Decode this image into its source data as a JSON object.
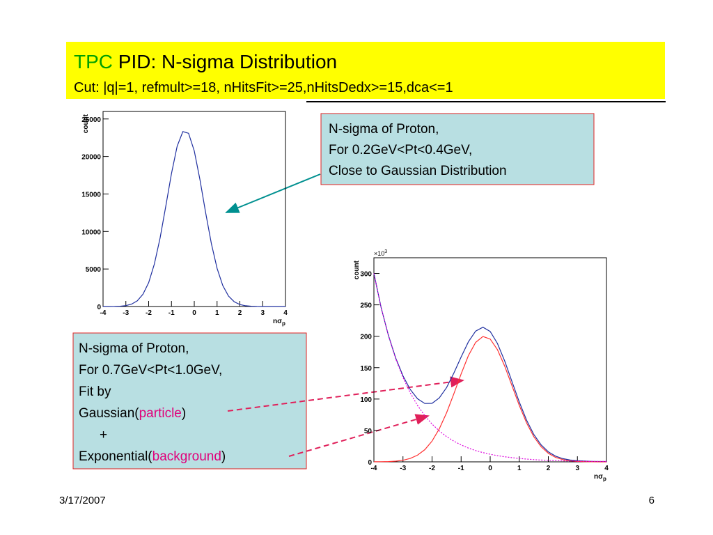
{
  "header": {
    "title_accent": "TPC",
    "title": "PID: N-sigma Distribution",
    "subtitle": "Cut: |q|=1, refmult>=18, nHitsFit>=25,nHitsDedx>=15,dca<=1"
  },
  "chart_data": [
    {
      "type": "line",
      "ylabel": "count",
      "xlabel": "nσ",
      "xlabel_sub": "p",
      "x": [
        -4,
        -3.75,
        -3.5,
        -3.25,
        -3,
        -2.75,
        -2.5,
        -2.25,
        -2,
        -1.75,
        -1.5,
        -1.25,
        -1,
        -0.75,
        -0.5,
        -0.25,
        0,
        0.25,
        0.5,
        0.75,
        1,
        1.25,
        1.5,
        1.75,
        2,
        2.25,
        2.5,
        2.75,
        3,
        3.25,
        3.5,
        3.75,
        4
      ],
      "xlim": [
        -4,
        4
      ],
      "xticks": [
        -4,
        -3,
        -2,
        -1,
        0,
        1,
        2,
        3,
        4
      ],
      "ylim": [
        0,
        26000
      ],
      "yticks": [
        0,
        5000,
        10000,
        15000,
        20000,
        25000
      ],
      "series": [
        {
          "color": "#1f2f9f",
          "values": [
            1,
            4,
            13,
            41,
            120,
            315,
            750,
            1630,
            3180,
            5660,
            9130,
            13370,
            17740,
            21360,
            23320,
            23090,
            20740,
            16890,
            12480,
            8370,
            5080,
            2800,
            1400,
            640,
            260,
            100,
            33,
            10,
            3,
            1,
            0,
            0,
            0
          ]
        }
      ]
    },
    {
      "type": "line",
      "ylabel": "count",
      "xlabel": "nσ",
      "xlabel_sub": "p",
      "multiplier": "×10",
      "multiplier_exp": "3",
      "x": [
        -4,
        -3.75,
        -3.5,
        -3.25,
        -3,
        -2.75,
        -2.5,
        -2.25,
        -2,
        -1.75,
        -1.5,
        -1.25,
        -1,
        -0.75,
        -0.5,
        -0.25,
        0,
        0.25,
        0.5,
        0.75,
        1,
        1.25,
        1.5,
        1.75,
        2,
        2.25,
        2.5,
        2.75,
        3,
        3.25,
        3.5,
        3.75,
        4
      ],
      "xlim": [
        -4,
        4
      ],
      "xticks": [
        -4,
        -3,
        -2,
        -1,
        0,
        1,
        2,
        3,
        4
      ],
      "ylim": [
        0,
        325
      ],
      "yticks": [
        0,
        50,
        100,
        150,
        200,
        250,
        300
      ],
      "series": [
        {
          "color": "#1f2f9f",
          "values": [
            300.1,
            245.6,
            201.2,
            165.3,
            136.9,
            115.3,
            100.5,
            92.9,
            93.2,
            101.8,
            118.4,
            141.3,
            167.0,
            191.1,
            208.2,
            214.4,
            207.7,
            188.6,
            160.4,
            127.8,
            95.3,
            66.6,
            43.7,
            27.1,
            16.0,
            9.1,
            5.1,
            2.9,
            1.8,
            1.2,
            0.8,
            0.6,
            0.5
          ]
        },
        {
          "color": "#ff3030",
          "values": [
            0.07,
            0.18,
            0.47,
            1.1,
            2.6,
            5.4,
            10.6,
            19.4,
            33.1,
            52.6,
            78.2,
            108.4,
            140.1,
            169.1,
            190.2,
            199.7,
            195.6,
            178.7,
            152.3,
            121.2,
            89.9,
            62.2,
            40.1,
            24.2,
            13.6,
            7.1,
            3.5,
            1.6,
            0.7,
            0.27,
            0.1,
            0.04,
            0.01
          ]
        },
        {
          "color": "#dd00dd",
          "dash": "2,2",
          "values": [
            300,
            245.4,
            200.7,
            164.2,
            134.3,
            109.9,
            89.9,
            73.5,
            60.1,
            49.2,
            40.2,
            32.9,
            26.9,
            22.0,
            18.0,
            14.7,
            12.1,
            9.9,
            8.1,
            6.6,
            5.4,
            4.4,
            3.6,
            2.9,
            2.4,
            2.0,
            1.6,
            1.3,
            1.1,
            0.9,
            0.7,
            0.6,
            0.5
          ]
        }
      ]
    }
  ],
  "callout_top": [
    "N-sigma of Proton,",
    "For 0.2GeV<Pt<0.4GeV,",
    "Close to Gaussian Distribution"
  ],
  "callout_bottom": {
    "lines": [
      "N-sigma of Proton,",
      "For 0.7GeV<Pt<1.0GeV,",
      "Fit by"
    ],
    "gaussian": "Gaussian(",
    "particle": "particle",
    "close1": ")",
    "plus": "+",
    "exponential": "Exponential(",
    "background": "background",
    "close2": ")"
  },
  "footer": {
    "date": "3/17/2007",
    "page": "6"
  }
}
